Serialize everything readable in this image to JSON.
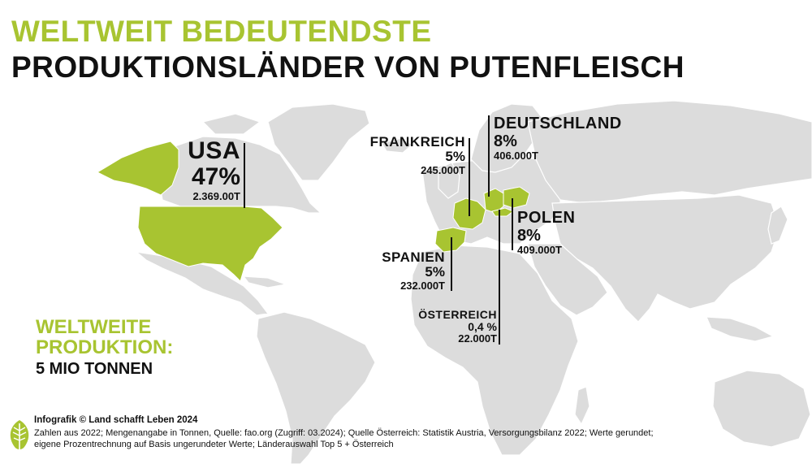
{
  "title": {
    "line1": "WELTWEIT BEDEUTENDSTE",
    "line2": "PRODUKTIONSLÄNDER VON PUTENFLEISCH"
  },
  "countries": {
    "usa": {
      "name": "USA",
      "percent": "47%",
      "tonnes": "2.369.00T"
    },
    "frankreich": {
      "name": "FRANKREICH",
      "percent": "5%",
      "tonnes": "245.000T"
    },
    "deutschland": {
      "name": "DEUTSCHLAND",
      "percent": "8%",
      "tonnes": "406.000T"
    },
    "polen": {
      "name": "POLEN",
      "percent": "8%",
      "tonnes": "409.000T"
    },
    "spanien": {
      "name": "SPANIEN",
      "percent": "5%",
      "tonnes": "232.000T"
    },
    "oesterreich": {
      "name": "ÖSTERREICH",
      "percent": "0,4 %",
      "tonnes": "22.000T"
    }
  },
  "world_total": {
    "line1": "WELTWEITE",
    "line2": "PRODUKTION:",
    "value": "5 MIO TONNEN"
  },
  "footer": {
    "brand": "Infografik © Land schafft Leben 2024",
    "source_line1": "Zahlen aus 2022; Mengenangabe in Tonnen, Quelle: fao.org (Zugriff: 03.2024); Quelle Österreich: Statistik Austria, Versorgungsbilanz 2022; Werte gerundet;",
    "source_line2": "eigene Prozentrechnung auf Basis ungerundeter Werte; Länderauswahl Top 5 + Österreich"
  },
  "colors": {
    "accent": "#a8c431",
    "land": "#dcdcdc",
    "text": "#111111"
  },
  "icons": {
    "logo": "leaf-logo-icon"
  }
}
